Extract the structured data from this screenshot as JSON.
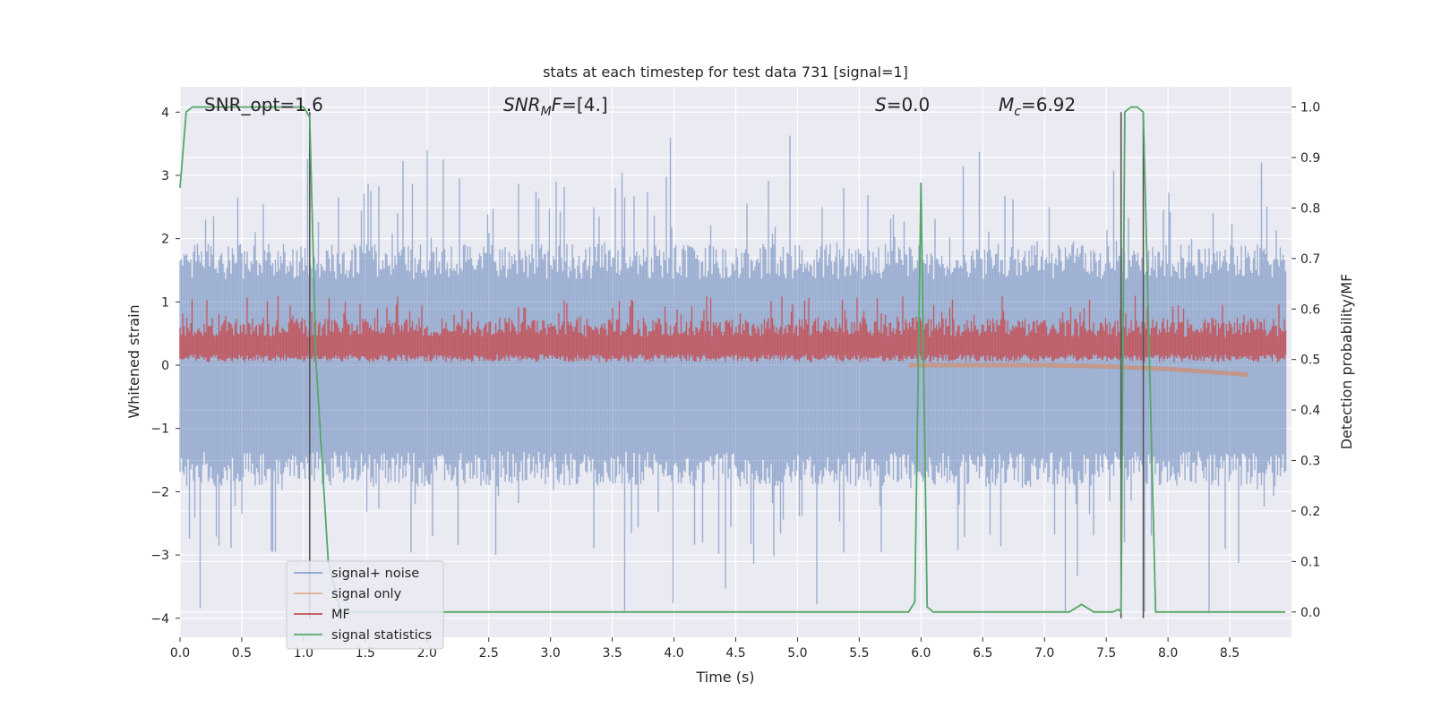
{
  "colors": {
    "signal_noise": "#4c72b0",
    "signal_only": "#dd8452",
    "mf": "#c44e52",
    "signal_statistics": "#55a868",
    "vline": "#555555",
    "axes_bg": "#eaeaf2",
    "grid": "#ffffff"
  },
  "chart_data": {
    "type": "line",
    "title": "stats at each timestep for test data 731 [signal=1]",
    "xlabel": "Time (s)",
    "ylabel": "Whitened strain",
    "ylabel_right": "Detection probability/MF",
    "xlim": [
      0.0,
      9.0
    ],
    "ylim": [
      -4.3,
      4.4
    ],
    "ylim_right": [
      -0.05,
      1.04
    ],
    "x_ticks": [
      "0.0",
      "0.5",
      "1.0",
      "1.5",
      "2.0",
      "2.5",
      "3.0",
      "3.5",
      "4.0",
      "4.5",
      "5.0",
      "5.5",
      "6.0",
      "6.5",
      "7.0",
      "7.5",
      "8.0",
      "8.5"
    ],
    "y_ticks": [
      "4",
      "3",
      "2",
      "1",
      "0",
      "−1",
      "−2",
      "−3",
      "−4"
    ],
    "y_ticks_right": [
      "1.0",
      "0.9",
      "0.8",
      "0.7",
      "0.6",
      "0.5",
      "0.4",
      "0.3",
      "0.2",
      "0.1",
      "0.0"
    ],
    "grid": true,
    "legend_position": "lower-left",
    "annotations": {
      "snr_opt": "SNR_opt=1.6",
      "snr_mf_math": "SNR",
      "snr_mf_sub": "M",
      "snr_mf_f": "F",
      "snr_mf_val": "=[4.]",
      "s_math": "S",
      "s_val": "=0.0",
      "mc_math": "M",
      "mc_sub": "c",
      "mc_val": "=6.92"
    },
    "vertical_lines_x": [
      1.05,
      7.62,
      7.8
    ],
    "series": [
      {
        "name": "signal+ noise",
        "axis": "left",
        "description_values": "noise envelope approx ±1.5, spikes to ±3.5",
        "envelope": [
          -1.6,
          1.6
        ]
      },
      {
        "name": "signal only",
        "axis": "left",
        "x": [
          5.9,
          6.5,
          7.0,
          7.5,
          8.0,
          8.3,
          8.65
        ],
        "values": [
          0.0,
          0.0,
          0.0,
          -0.02,
          -0.06,
          -0.1,
          -0.15
        ]
      },
      {
        "name": "MF",
        "axis": "left",
        "envelope": [
          0.05,
          0.9
        ]
      },
      {
        "name": "signal statistics",
        "axis": "right",
        "x": [
          0.0,
          0.05,
          0.1,
          0.5,
          1.0,
          1.05,
          1.1,
          1.2,
          1.3,
          5.9,
          5.95,
          6.0,
          6.05,
          6.1,
          6.5,
          7.0,
          7.2,
          7.3,
          7.4,
          7.55,
          7.6,
          7.62,
          7.65,
          7.7,
          7.75,
          7.8,
          7.85,
          7.9,
          8.3,
          8.4,
          8.95
        ],
        "values": [
          0.84,
          0.99,
          1.0,
          1.0,
          1.0,
          0.98,
          0.5,
          0.1,
          0.0,
          0.0,
          0.02,
          0.85,
          0.01,
          0.0,
          0.0,
          0.0,
          0.0,
          0.015,
          0.0,
          0.0,
          0.005,
          0.0,
          0.99,
          1.0,
          1.0,
          0.99,
          0.5,
          0.0,
          0.0,
          0.0,
          0.0
        ]
      }
    ]
  },
  "legend": {
    "items": [
      "signal+ noise",
      "signal only",
      "MF",
      "signal statistics"
    ]
  }
}
